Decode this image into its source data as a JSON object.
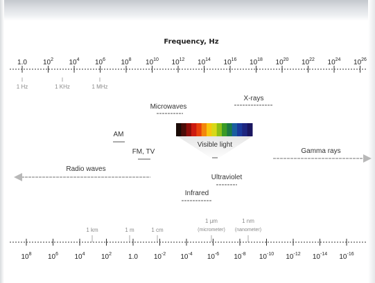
{
  "diagram": {
    "title": "Frequency, Hz",
    "frequency_ticks": [
      {
        "base": "1.0",
        "exp": ""
      },
      {
        "base": "10",
        "exp": "2"
      },
      {
        "base": "10",
        "exp": "4"
      },
      {
        "base": "10",
        "exp": "6"
      },
      {
        "base": "10",
        "exp": "8"
      },
      {
        "base": "10",
        "exp": "10"
      },
      {
        "base": "10",
        "exp": "12"
      },
      {
        "base": "10",
        "exp": "14"
      },
      {
        "base": "10",
        "exp": "16"
      },
      {
        "base": "10",
        "exp": "18"
      },
      {
        "base": "10",
        "exp": "20"
      },
      {
        "base": "10",
        "exp": "22"
      },
      {
        "base": "10",
        "exp": "24"
      },
      {
        "base": "10",
        "exp": "26"
      }
    ],
    "frequency_units": [
      "1 Hz",
      "1 KHz",
      "1 MHz"
    ],
    "bands": {
      "microwaves": "Microwaves",
      "xrays": "X-rays",
      "am": "AM",
      "fm_tv": "FM, TV",
      "visible_light": "Visible light",
      "gamma_rays": "Gamma rays",
      "radio_waves": "Radio waves",
      "ultraviolet": "Ultraviolet",
      "infrared": "Infrared"
    },
    "spectrum_colors": [
      "#1a0a06",
      "#4a0c08",
      "#8e0d0a",
      "#cc1a10",
      "#e8400c",
      "#f3860c",
      "#f7c60e",
      "#d8d818",
      "#8ec018",
      "#3a9a26",
      "#1b7a44",
      "#1a5ea0",
      "#1b3a9c",
      "#1e2680",
      "#1a1660"
    ],
    "wavelength_units": [
      {
        "label": "1 km",
        "sub": ""
      },
      {
        "label": "1 m",
        "sub": ""
      },
      {
        "label": "1 cm",
        "sub": ""
      },
      {
        "label": "1 µm",
        "sub": "(micrometer)"
      },
      {
        "label": "1 nm",
        "sub": "(nanometer)"
      }
    ],
    "wavelength_ticks": [
      {
        "base": "10",
        "exp": "8"
      },
      {
        "base": "10",
        "exp": "6"
      },
      {
        "base": "10",
        "exp": "4"
      },
      {
        "base": "10",
        "exp": "2"
      },
      {
        "base": "1.0",
        "exp": ""
      },
      {
        "base": "10",
        "exp": "-2"
      },
      {
        "base": "10",
        "exp": "-4"
      },
      {
        "base": "10",
        "exp": "-6"
      },
      {
        "base": "10",
        "exp": "-8"
      },
      {
        "base": "10",
        "exp": "-10"
      },
      {
        "base": "10",
        "exp": "-12"
      },
      {
        "base": "10",
        "exp": "-14"
      },
      {
        "base": "10",
        "exp": "-16"
      }
    ],
    "colors": {
      "axis": "#333333",
      "unit": "#888888",
      "dotted": "#aaaaaa",
      "arrow": "#b8b8b8"
    }
  }
}
